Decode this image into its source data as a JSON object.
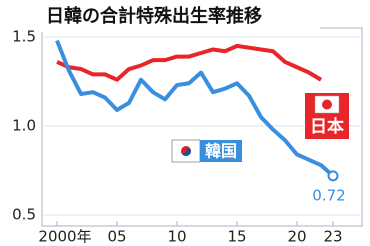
{
  "chart_data": {
    "type": "line",
    "title": "日韓の合計特殊出生率推移",
    "x": [
      2000,
      2001,
      2002,
      2003,
      2004,
      2005,
      2006,
      2007,
      2008,
      2009,
      2010,
      2011,
      2012,
      2013,
      2014,
      2015,
      2016,
      2017,
      2018,
      2019,
      2020,
      2021,
      2022,
      2023
    ],
    "xlim": [
      1999,
      2024
    ],
    "xticks": [
      {
        "value": 2000,
        "label": "2000年"
      },
      {
        "value": 2005,
        "label": "05"
      },
      {
        "value": 2010,
        "label": "10"
      },
      {
        "value": 2015,
        "label": "15"
      },
      {
        "value": 2020,
        "label": "20"
      },
      {
        "value": 2023,
        "label": "23"
      }
    ],
    "ylim": [
      0.5,
      1.5
    ],
    "yticks": [
      {
        "value": 0.5,
        "label": "0.5"
      },
      {
        "value": 1.0,
        "label": "1.0"
      },
      {
        "value": 1.5,
        "label": "1.5"
      }
    ],
    "grid": true,
    "series": [
      {
        "name": "日本",
        "color": "#e8262a",
        "values": [
          1.36,
          1.33,
          1.32,
          1.29,
          1.29,
          1.26,
          1.32,
          1.34,
          1.37,
          1.37,
          1.39,
          1.39,
          1.41,
          1.43,
          1.42,
          1.45,
          1.44,
          1.43,
          1.42,
          1.36,
          1.33,
          1.3,
          1.26,
          null
        ]
      },
      {
        "name": "韓国",
        "color": "#3a8ee0",
        "values": [
          1.48,
          1.31,
          1.18,
          1.19,
          1.16,
          1.09,
          1.13,
          1.26,
          1.19,
          1.15,
          1.23,
          1.24,
          1.3,
          1.19,
          1.21,
          1.24,
          1.17,
          1.05,
          0.98,
          0.92,
          0.84,
          0.81,
          0.78,
          0.72
        ]
      }
    ]
  }
}
